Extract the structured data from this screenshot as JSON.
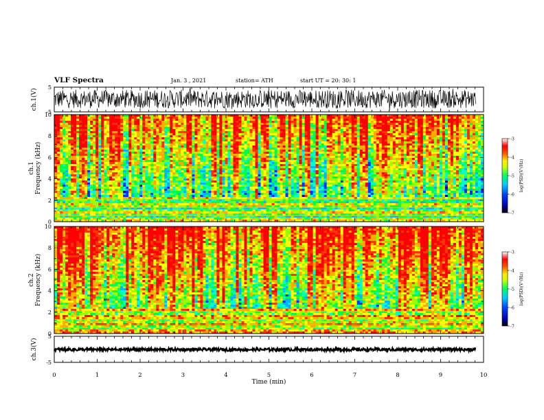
{
  "header": {
    "title": "VLF Spectra",
    "date": "Jan. 3 , 2021",
    "station": "station= ATH",
    "start_ut": "start UT = 20: 30: 1"
  },
  "colors": {
    "colormap": [
      "#0000a0",
      "#0033ff",
      "#00ccff",
      "#00ff66",
      "#ffff00",
      "#ff0000",
      "#ffffff"
    ]
  },
  "chart_data": [
    {
      "type": "line",
      "panel": "ch1-waveform",
      "ylabel": "ch.1(V)",
      "ylim": [
        -5,
        5
      ],
      "yticks": [
        "5",
        "-5"
      ],
      "xlim": [
        0,
        10
      ]
    },
    {
      "type": "heatmap",
      "panel": "ch1-spectrogram",
      "ylabel": "ch.1 Frequency (kHz)",
      "ylabel_line1": "ch.1",
      "ylabel_line2": "Frequency (kHz)",
      "ylim": [
        0,
        10
      ],
      "yticks": [
        "0",
        "2",
        "4",
        "6",
        "8",
        "10"
      ],
      "xlim": [
        0,
        10
      ],
      "colorbar": {
        "label": "log(PSD)(V²/Hz)",
        "range": [
          -7,
          -3
        ],
        "ticks": [
          "-3",
          "-4",
          "-5",
          "-6",
          "-7"
        ]
      }
    },
    {
      "type": "heatmap",
      "panel": "ch2-spectrogram",
      "ylabel": "ch.2 Frequency (kHz)",
      "ylabel_line1": "ch.2",
      "ylabel_line2": "Frequency (kHz)",
      "ylim": [
        0,
        10
      ],
      "yticks": [
        "0",
        "2",
        "4",
        "6",
        "8",
        "10"
      ],
      "xlim": [
        0,
        10
      ],
      "colorbar": {
        "label": "log(PSD)(V²/Hz)",
        "range": [
          -7,
          -3
        ],
        "ticks": [
          "-3",
          "-4",
          "-5",
          "-6",
          "-7"
        ]
      }
    },
    {
      "type": "line",
      "panel": "ch3-waveform",
      "ylabel": "ch.3(V)",
      "ylim": [
        -5,
        5
      ],
      "yticks": [
        "5",
        "-5"
      ],
      "xlim": [
        0,
        10
      ],
      "xlabel": "Time (min)",
      "xticks": [
        "0",
        "1",
        "2",
        "3",
        "4",
        "5",
        "6",
        "7",
        "8",
        "9",
        "10"
      ]
    }
  ]
}
